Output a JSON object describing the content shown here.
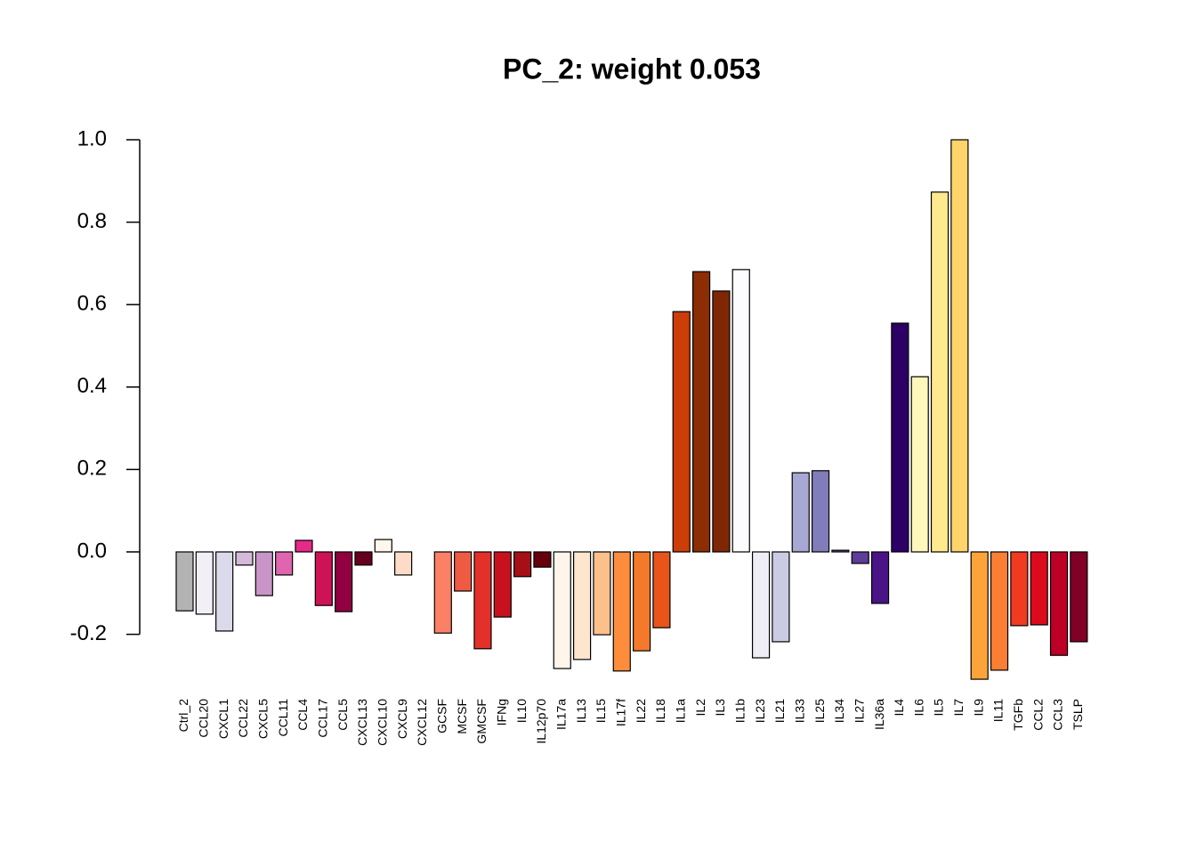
{
  "chart_data": {
    "type": "bar",
    "title": "PC_2: weight 0.053",
    "categories": [
      "Ctrl_2",
      "CCL20",
      "CXCL1",
      "CCL22",
      "CXCL5",
      "CCL11",
      "CCL4",
      "CCL17",
      "CCL5",
      "CXCL13",
      "CXCL10",
      "CXCL9",
      "CXCL12",
      "GCSF",
      "MCSF",
      "GMCSF",
      "IFNg",
      "IL10",
      "IL12p70",
      "IL17a",
      "IL13",
      "IL15",
      "IL17f",
      "IL22",
      "IL18",
      "IL1a",
      "IL2",
      "IL3",
      "IL1b",
      "IL23",
      "IL21",
      "IL33",
      "IL25",
      "IL34",
      "IL27",
      "IL36a",
      "IL4",
      "IL6",
      "IL5",
      "IL7",
      "IL9",
      "IL11",
      "TGFb",
      "CCL2",
      "CCL3",
      "TSLP"
    ],
    "values": [
      -0.143,
      -0.151,
      -0.192,
      -0.032,
      -0.106,
      -0.056,
      0.028,
      -0.13,
      -0.145,
      -0.032,
      0.03,
      -0.056,
      0.0,
      -0.197,
      -0.095,
      -0.235,
      -0.158,
      -0.06,
      -0.037,
      -0.283,
      -0.261,
      -0.201,
      -0.289,
      -0.24,
      -0.184,
      0.583,
      0.68,
      0.633,
      0.685,
      -0.257,
      -0.218,
      0.192,
      0.197,
      0.004,
      -0.028,
      -0.125,
      0.555,
      0.425,
      0.873,
      1.0,
      -0.309,
      -0.287,
      -0.179,
      -0.177,
      -0.251,
      -0.218
    ],
    "colors": [
      "#b3b3b3",
      "#f2eff7",
      "#dadaeb",
      "#d4b9da",
      "#c994c7",
      "#df65b0",
      "#e7298a",
      "#ce1256",
      "#91003f",
      "#67001f",
      "#fff7ec",
      "#fcdcc8",
      "#fdbb84",
      "#fb8066",
      "#ef5a42",
      "#e3302a",
      "#c8101e",
      "#a50f15",
      "#67000d",
      "#fff5eb",
      "#fee6ce",
      "#fdc08a",
      "#fd8d3c",
      "#f4792a",
      "#e8541a",
      "#cc3d07",
      "#8c2d04",
      "#7f2704",
      "#fcfbfd",
      "#efedf5",
      "#cbcbe4",
      "#a8a8d4",
      "#807dba",
      "#6a51a3",
      "#5e3c99",
      "#4a1486",
      "#2d0066",
      "#fff7bc",
      "#ffe98e",
      "#fed46b",
      "#fca43a",
      "#fa7f34",
      "#f03b20",
      "#db0a1c",
      "#bd0026",
      "#800026"
    ],
    "ylim": [
      -0.31,
      1.0
    ],
    "yticks": [
      -0.2,
      {
        "value": 0.0,
        "label": "0.0"
      },
      0.2,
      0.4,
      0.6,
      0.8,
      {
        "value": 1.0,
        "label": "1.0"
      }
    ]
  }
}
